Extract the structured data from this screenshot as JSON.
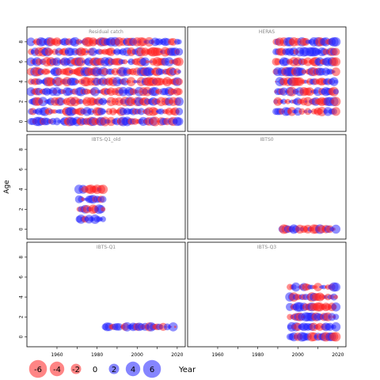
{
  "chart_data": {
    "type": "scatter",
    "subtype": "bubble-residuals",
    "xlabel": "Year",
    "ylabel": "Age",
    "x_ticks": [
      1960,
      1970,
      1980,
      1990,
      2000,
      2010,
      2020
    ],
    "x_tick_labels": [
      "1960",
      "1980",
      "2000",
      "2020"
    ],
    "y_ticks": [
      0,
      2,
      4,
      6,
      8
    ],
    "xlim": [
      1945,
      2024
    ],
    "ylim": [
      -1,
      9.5
    ],
    "colors": {
      "positive": "#ff2020",
      "negative": "#2020ff"
    },
    "legend": {
      "labels": [
        "-6",
        "-4",
        "-2",
        "0",
        "2",
        "4",
        "6"
      ],
      "values": [
        -6,
        -4,
        -2,
        0,
        2,
        4,
        6
      ],
      "position": "bottom",
      "title": "Year"
    },
    "panels": [
      {
        "title": "Residual catch",
        "years": [
          1947,
          2021
        ],
        "ages": [
          0,
          1,
          2,
          3,
          4,
          5,
          6,
          7,
          8
        ],
        "seed": 11
      },
      {
        "title": "HERAS",
        "years": [
          1989,
          2019
        ],
        "ages": [
          1,
          2,
          3,
          4,
          5,
          6,
          7,
          8
        ],
        "seed": 23
      },
      {
        "title": "IBTS-Q1_old",
        "years": [
          1971,
          1983
        ],
        "ages": [
          1,
          2,
          3,
          4
        ],
        "seed": 37
      },
      {
        "title": "IBTS0",
        "years": [
          1992,
          2019
        ],
        "ages": [
          0
        ],
        "seed": 41
      },
      {
        "title": "IBTS-Q1",
        "years": [
          1984,
          2019
        ],
        "ages": [
          1
        ],
        "seed": 53
      },
      {
        "title": "IBTS-Q3",
        "years": [
          1996,
          2019
        ],
        "ages": [
          0,
          1,
          2,
          3,
          4,
          5
        ],
        "seed": 67
      }
    ]
  }
}
